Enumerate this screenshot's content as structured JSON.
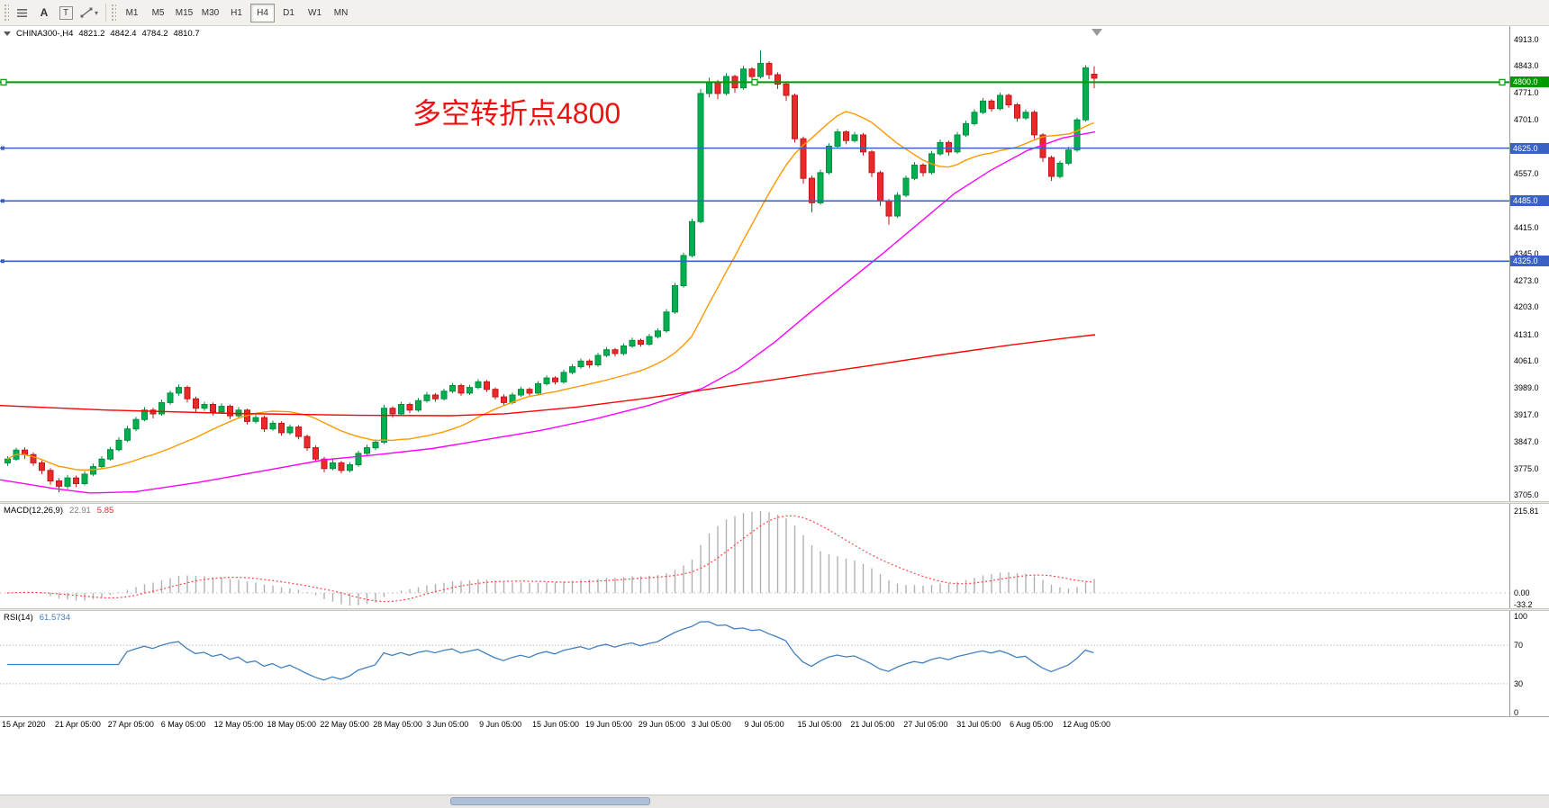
{
  "toolbar": {
    "tools": [
      {
        "icon": "chart-list-icon"
      },
      {
        "icon": "text-tool-icon",
        "glyph": "A"
      },
      {
        "icon": "label-tool-icon",
        "glyph": "T"
      },
      {
        "icon": "line-studies-icon",
        "caret": "▾"
      }
    ],
    "timeframes": [
      "M1",
      "M5",
      "M15",
      "M30",
      "H1",
      "H4",
      "D1",
      "W1",
      "MN"
    ],
    "active_timeframe": "H4"
  },
  "chart": {
    "header": {
      "symbol": "CHINA300-,H4",
      "open": "4821.2",
      "high": "4842.4",
      "low": "4784.2",
      "close": "4810.7"
    },
    "colors": {
      "up": "#00B050",
      "up_stroke": "#008f3e",
      "down": "#EA2A2A",
      "down_stroke": "#c01818"
    }
  },
  "chart_data": {
    "type": "candlestick",
    "symbol": "CHINA300-",
    "timeframe": "H4",
    "y_range": [
      3705,
      4913
    ],
    "y_ticks": [
      "4913.0",
      "4843.0",
      "4771.0",
      "4701.0",
      "4557.0",
      "4415.0",
      "4345.0",
      "4273.0",
      "4203.0",
      "4131.0",
      "4061.0",
      "3989.0",
      "3917.0",
      "3847.0",
      "3775.0",
      "3705.0"
    ],
    "annotation": {
      "text": "多空转折点4800",
      "color": "#ef1111"
    },
    "hlines": [
      {
        "value": 4800,
        "label": "4800.0",
        "color": "#009900",
        "selected": true
      },
      {
        "value": 4625,
        "label": "4625.0",
        "color": "#3a62c4",
        "selected": false
      },
      {
        "value": 4485,
        "label": "4485.0",
        "color": "#3a62c4",
        "selected": false
      },
      {
        "value": 4325,
        "label": "4325.0",
        "color": "#3a62c4",
        "selected": false
      }
    ],
    "candles": [
      [
        3790,
        3808,
        3782,
        3800
      ],
      [
        3800,
        3830,
        3795,
        3824
      ],
      [
        3824,
        3831,
        3800,
        3812
      ],
      [
        3812,
        3818,
        3782,
        3790
      ],
      [
        3790,
        3796,
        3760,
        3770
      ],
      [
        3770,
        3776,
        3732,
        3742
      ],
      [
        3742,
        3750,
        3712,
        3728
      ],
      [
        3728,
        3758,
        3720,
        3750
      ],
      [
        3750,
        3756,
        3726,
        3735
      ],
      [
        3735,
        3768,
        3730,
        3760
      ],
      [
        3760,
        3788,
        3755,
        3780
      ],
      [
        3780,
        3808,
        3775,
        3800
      ],
      [
        3800,
        3832,
        3796,
        3825
      ],
      [
        3825,
        3858,
        3820,
        3850
      ],
      [
        3850,
        3888,
        3845,
        3880
      ],
      [
        3880,
        3912,
        3874,
        3905
      ],
      [
        3905,
        3938,
        3900,
        3930
      ],
      [
        3930,
        3936,
        3908,
        3920
      ],
      [
        3920,
        3958,
        3915,
        3950
      ],
      [
        3950,
        3982,
        3944,
        3975
      ],
      [
        3975,
        3998,
        3968,
        3990
      ],
      [
        3990,
        3995,
        3950,
        3960
      ],
      [
        3960,
        3966,
        3925,
        3935
      ],
      [
        3935,
        3952,
        3928,
        3945
      ],
      [
        3945,
        3950,
        3916,
        3925
      ],
      [
        3925,
        3948,
        3920,
        3940
      ],
      [
        3940,
        3945,
        3906,
        3915
      ],
      [
        3915,
        3938,
        3910,
        3930
      ],
      [
        3930,
        3934,
        3892,
        3900
      ],
      [
        3900,
        3918,
        3894,
        3910
      ],
      [
        3910,
        3915,
        3872,
        3880
      ],
      [
        3880,
        3902,
        3875,
        3895
      ],
      [
        3895,
        3900,
        3862,
        3870
      ],
      [
        3870,
        3892,
        3864,
        3885
      ],
      [
        3885,
        3890,
        3852,
        3860
      ],
      [
        3860,
        3865,
        3822,
        3830
      ],
      [
        3830,
        3836,
        3792,
        3800
      ],
      [
        3800,
        3806,
        3765,
        3775
      ],
      [
        3775,
        3798,
        3770,
        3790
      ],
      [
        3790,
        3795,
        3762,
        3770
      ],
      [
        3770,
        3792,
        3765,
        3785
      ],
      [
        3785,
        3822,
        3780,
        3815
      ],
      [
        3815,
        3838,
        3810,
        3830
      ],
      [
        3830,
        3852,
        3824,
        3845
      ],
      [
        3845,
        3944,
        3840,
        3935
      ],
      [
        3935,
        3940,
        3910,
        3920
      ],
      [
        3920,
        3952,
        3915,
        3945
      ],
      [
        3945,
        3950,
        3922,
        3930
      ],
      [
        3930,
        3962,
        3925,
        3955
      ],
      [
        3955,
        3978,
        3950,
        3970
      ],
      [
        3970,
        3975,
        3952,
        3960
      ],
      [
        3960,
        3987,
        3955,
        3980
      ],
      [
        3980,
        4002,
        3975,
        3995
      ],
      [
        3995,
        4000,
        3968,
        3975
      ],
      [
        3975,
        3997,
        3970,
        3990
      ],
      [
        3990,
        4012,
        3985,
        4005
      ],
      [
        4005,
        4010,
        3978,
        3985
      ],
      [
        3985,
        3990,
        3958,
        3965
      ],
      [
        3965,
        3972,
        3942,
        3950
      ],
      [
        3950,
        3977,
        3945,
        3970
      ],
      [
        3970,
        3992,
        3965,
        3985
      ],
      [
        3985,
        3990,
        3968,
        3975
      ],
      [
        3975,
        4007,
        3970,
        4000
      ],
      [
        4000,
        4022,
        3995,
        4015
      ],
      [
        4015,
        4020,
        3998,
        4005
      ],
      [
        4005,
        4037,
        4000,
        4030
      ],
      [
        4030,
        4052,
        4025,
        4045
      ],
      [
        4045,
        4067,
        4040,
        4060
      ],
      [
        4060,
        4065,
        4042,
        4050
      ],
      [
        4050,
        4082,
        4045,
        4075
      ],
      [
        4075,
        4097,
        4070,
        4090
      ],
      [
        4090,
        4095,
        4072,
        4080
      ],
      [
        4080,
        4107,
        4075,
        4100
      ],
      [
        4100,
        4122,
        4095,
        4115
      ],
      [
        4115,
        4120,
        4098,
        4105
      ],
      [
        4105,
        4132,
        4100,
        4125
      ],
      [
        4125,
        4147,
        4120,
        4140
      ],
      [
        4140,
        4198,
        4135,
        4190
      ],
      [
        4190,
        4268,
        4185,
        4260
      ],
      [
        4260,
        4348,
        4255,
        4340
      ],
      [
        4340,
        4438,
        4335,
        4430
      ],
      [
        4430,
        4782,
        4425,
        4770
      ],
      [
        4770,
        4812,
        4760,
        4800
      ],
      [
        4800,
        4806,
        4755,
        4770
      ],
      [
        4770,
        4824,
        4765,
        4815
      ],
      [
        4815,
        4820,
        4772,
        4785
      ],
      [
        4785,
        4843,
        4780,
        4835
      ],
      [
        4835,
        4840,
        4800,
        4815
      ],
      [
        4815,
        4885,
        4810,
        4850
      ],
      [
        4850,
        4856,
        4808,
        4820
      ],
      [
        4820,
        4826,
        4782,
        4795
      ],
      [
        4795,
        4800,
        4750,
        4765
      ],
      [
        4765,
        4770,
        4640,
        4650
      ],
      [
        4650,
        4656,
        4530,
        4545
      ],
      [
        4545,
        4552,
        4455,
        4480
      ],
      [
        4480,
        4568,
        4475,
        4560
      ],
      [
        4560,
        4638,
        4555,
        4630
      ],
      [
        4630,
        4676,
        4625,
        4668
      ],
      [
        4668,
        4672,
        4635,
        4645
      ],
      [
        4645,
        4668,
        4640,
        4660
      ],
      [
        4660,
        4665,
        4605,
        4615
      ],
      [
        4615,
        4620,
        4548,
        4560
      ],
      [
        4560,
        4565,
        4472,
        4485
      ],
      [
        4485,
        4490,
        4422,
        4445
      ],
      [
        4445,
        4508,
        4440,
        4500
      ],
      [
        4500,
        4552,
        4495,
        4545
      ],
      [
        4545,
        4588,
        4540,
        4580
      ],
      [
        4580,
        4585,
        4550,
        4560
      ],
      [
        4560,
        4618,
        4555,
        4610
      ],
      [
        4610,
        4648,
        4605,
        4640
      ],
      [
        4640,
        4645,
        4605,
        4615
      ],
      [
        4615,
        4668,
        4610,
        4660
      ],
      [
        4660,
        4698,
        4655,
        4690
      ],
      [
        4690,
        4728,
        4685,
        4720
      ],
      [
        4720,
        4758,
        4715,
        4750
      ],
      [
        4750,
        4755,
        4722,
        4730
      ],
      [
        4730,
        4772,
        4725,
        4765
      ],
      [
        4765,
        4770,
        4732,
        4740
      ],
      [
        4740,
        4745,
        4695,
        4705
      ],
      [
        4705,
        4728,
        4700,
        4720
      ],
      [
        4720,
        4725,
        4650,
        4660
      ],
      [
        4660,
        4665,
        4588,
        4600
      ],
      [
        4600,
        4605,
        4538,
        4550
      ],
      [
        4550,
        4592,
        4545,
        4585
      ],
      [
        4585,
        4628,
        4580,
        4620
      ],
      [
        4620,
        4706,
        4615,
        4700
      ],
      [
        4700,
        4845,
        4695,
        4838
      ],
      [
        4821.2,
        4842.4,
        4784.2,
        4810.7
      ]
    ],
    "ma_overlays": [
      {
        "name": "fast-ma",
        "color": "#FF9900",
        "derive": "sma",
        "period": 18
      },
      {
        "name": "mid-ma",
        "color": "#FF00FF",
        "points": [
          [
            0,
            3745
          ],
          [
            60,
            3722
          ],
          [
            100,
            3710
          ],
          [
            150,
            3713
          ],
          [
            220,
            3738
          ],
          [
            300,
            3772
          ],
          [
            360,
            3798
          ],
          [
            420,
            3812
          ],
          [
            480,
            3828
          ],
          [
            540,
            3852
          ],
          [
            600,
            3876
          ],
          [
            660,
            3906
          ],
          [
            720,
            3942
          ],
          [
            780,
            3988
          ],
          [
            820,
            4040
          ],
          [
            860,
            4110
          ],
          [
            900,
            4190
          ],
          [
            940,
            4268
          ],
          [
            980,
            4345
          ],
          [
            1020,
            4425
          ],
          [
            1060,
            4505
          ],
          [
            1100,
            4566
          ],
          [
            1140,
            4618
          ],
          [
            1180,
            4652
          ],
          [
            1216,
            4668
          ]
        ]
      },
      {
        "name": "slow-ma",
        "color": "#FF0000",
        "points": [
          [
            0,
            3942
          ],
          [
            120,
            3930
          ],
          [
            260,
            3921
          ],
          [
            400,
            3916
          ],
          [
            500,
            3915
          ],
          [
            560,
            3920
          ],
          [
            640,
            3938
          ],
          [
            720,
            3962
          ],
          [
            800,
            3990
          ],
          [
            880,
            4018
          ],
          [
            960,
            4046
          ],
          [
            1040,
            4075
          ],
          [
            1120,
            4102
          ],
          [
            1180,
            4120
          ],
          [
            1216,
            4130
          ]
        ]
      }
    ],
    "indicators": [
      {
        "name": "MACD",
        "label": "MACD(12,26,9)",
        "value_main": "22.91",
        "value_signal": "5.85",
        "scale_top": "215.81",
        "scale_zero": "0.00",
        "scale_bottom": "-33.2",
        "scale_top_value": 215.81,
        "scale_bottom_value": -33.2,
        "histogram_color": "#b0b0b0",
        "signal_color": "#ff4444"
      },
      {
        "name": "RSI",
        "label": "RSI(14)",
        "value": "61.5734",
        "period": 14,
        "scale": [
          "100",
          "70",
          "30",
          "0"
        ],
        "levels": [
          70,
          30
        ],
        "line_color": "#4181C0"
      }
    ],
    "x_labels": [
      "15 Apr 2020",
      "21 Apr 05:00",
      "27 Apr 05:00",
      "6 May 05:00",
      "12 May 05:00",
      "18 May 05:00",
      "22 May 05:00",
      "28 May 05:00",
      "3 Jun 05:00",
      "9 Jun 05:00",
      "15 Jun 05:00",
      "19 Jun 05:00",
      "29 Jun 05:00",
      "3 Jul 05:00",
      "9 Jul 05:00",
      "15 Jul 05:00",
      "21 Jul 05:00",
      "27 Jul 05:00",
      "31 Jul 05:00",
      "6 Aug 05:00",
      "12 Aug 05:00"
    ]
  }
}
